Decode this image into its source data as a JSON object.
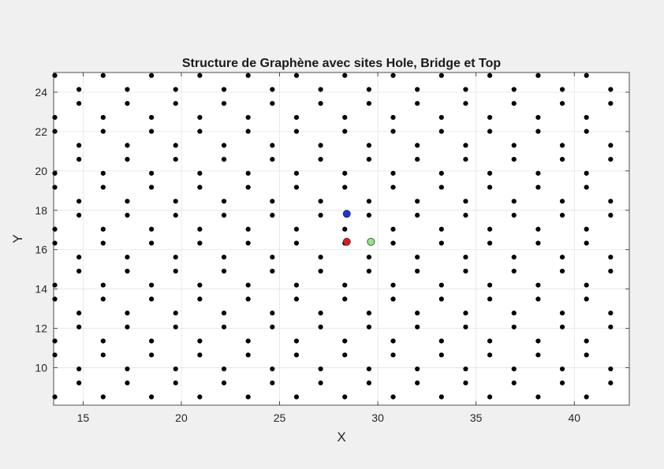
{
  "chart_data": {
    "type": "scatter",
    "title": "Structure de Graphène avec sites Hole, Bridge et Top",
    "xlabel": "X",
    "ylabel": "Y",
    "xlim": [
      13.5,
      42.8
    ],
    "ylim": [
      8.1,
      25.0
    ],
    "xticks": [
      15,
      20,
      25,
      30,
      35,
      40
    ],
    "yticks": [
      10,
      12,
      14,
      16,
      18,
      20,
      22,
      24
    ],
    "grid": true,
    "lattice": {
      "a": 1.42,
      "x_period": 2.46,
      "row_pitch": 0.71,
      "col_A": [
        13.56,
        16.02,
        18.48,
        20.94,
        23.4,
        25.86,
        28.32,
        30.78,
        33.24,
        35.7,
        38.16,
        40.62
      ],
      "col_B": [
        14.79,
        17.25,
        19.71,
        22.17,
        24.63,
        27.09,
        29.55,
        32.01,
        34.47,
        36.93,
        39.39,
        41.85
      ],
      "y_start": 8.52,
      "rows": 24,
      "row_pattern": "A,B,B,A,A,B,B,A,...",
      "color": "#000000"
    },
    "series": [
      {
        "name": "Hole",
        "x": [
          28.42
        ],
        "y": [
          16.4
        ],
        "color": "#e8141c"
      },
      {
        "name": "Bridge",
        "x": [
          28.42
        ],
        "y": [
          17.82
        ],
        "color": "#1a33e6"
      },
      {
        "name": "Top",
        "x": [
          29.65
        ],
        "y": [
          16.4
        ],
        "color": "#8ee880"
      }
    ]
  }
}
